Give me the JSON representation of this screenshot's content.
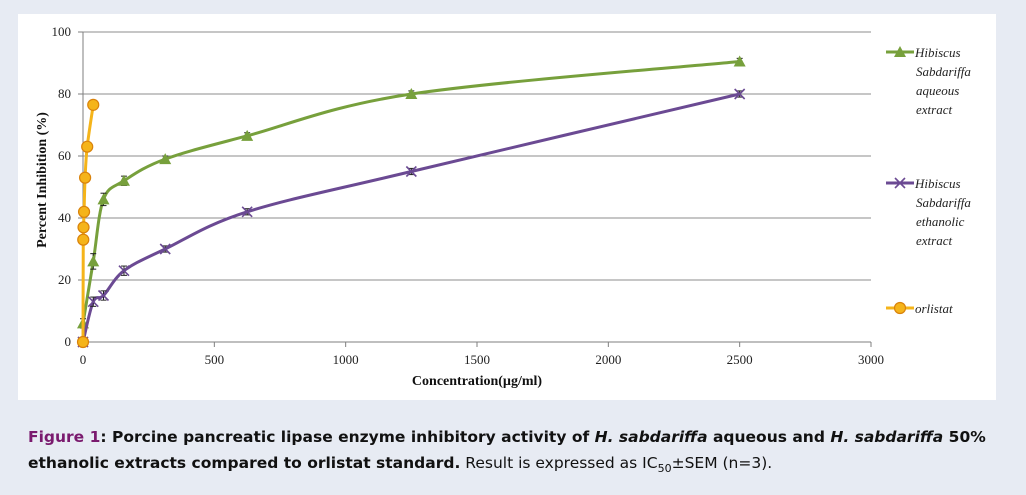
{
  "chart_data": {
    "type": "line",
    "xlabel": "Concentration(µg/ml)",
    "ylabel": "Percent Inhibition (%)",
    "xlim": [
      0,
      3000
    ],
    "ylim": [
      0,
      100
    ],
    "x_ticks": [
      "0",
      "500",
      "1000",
      "1500",
      "2000",
      "2500",
      "3000"
    ],
    "y_ticks": [
      "0",
      "20",
      "40",
      "60",
      "80",
      "100"
    ],
    "grid": "horizontal",
    "legend_position": "right",
    "series": [
      {
        "name_lines": [
          "Hibiscus",
          "Sabdariffa",
          "aqueous",
          "extract"
        ],
        "color": "#77a03c",
        "marker": "triangle",
        "x": [
          0,
          39,
          78,
          156,
          313,
          625,
          1250,
          2500
        ],
        "y": [
          6,
          26,
          46,
          52,
          59,
          66.5,
          80,
          90.5
        ],
        "err": [
          1.5,
          2.5,
          2,
          1.5,
          1,
          1,
          1,
          1
        ]
      },
      {
        "name_lines": [
          "Hibiscus",
          "Sabdariffa",
          "ethanolic",
          "extract"
        ],
        "color": "#6b4a93",
        "marker": "x",
        "x": [
          0,
          39,
          78,
          156,
          313,
          625,
          1250,
          2500
        ],
        "y": [
          0,
          13,
          15,
          23,
          30,
          42,
          55,
          80
        ],
        "err": [
          0.5,
          1.5,
          1.5,
          1.5,
          1,
          1,
          1,
          1
        ]
      },
      {
        "name_lines": [
          "orlistat"
        ],
        "color": "#f5b41a",
        "marker_stroke": "#d9820b",
        "marker": "circle",
        "x": [
          0,
          1,
          2,
          4,
          8,
          16,
          39
        ],
        "y": [
          0,
          33,
          37,
          42,
          53,
          63,
          76.5
        ],
        "err": [
          0,
          0,
          0,
          0,
          0,
          0,
          0
        ]
      }
    ]
  },
  "caption": {
    "label": "Figure 1",
    "colon": ": ",
    "bold_a": "Porcine pancreatic lipase enzyme inhibitory activity of ",
    "ital_a": "H. sabdariffa",
    "bold_b": " aqueous and ",
    "ital_b": "H. sabdariffa",
    "bold_c": " 50% ethanolic extracts compared to orlistat standard.",
    "normal_a": " Result is expressed as IC",
    "sub": "50",
    "normal_b": "±SEM (n=3)."
  }
}
